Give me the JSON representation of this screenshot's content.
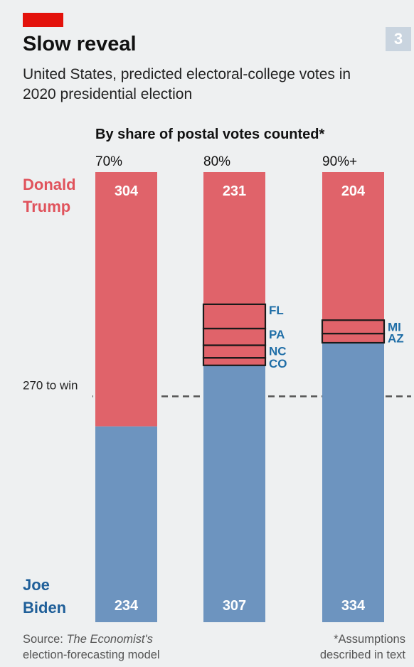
{
  "header": {
    "chart_number": "3",
    "title": "Slow reveal",
    "subtitle": "United States, predicted electoral-college votes in 2020 presidential election"
  },
  "footer": {
    "source_prefix": "Source: ",
    "source_italic": "The Economist's",
    "source_rest": "election-forecasting model",
    "note_line1": "*Assumptions",
    "note_line2": "described in text"
  },
  "colors": {
    "trump": "#e0636a",
    "biden": "#6d94bf",
    "trump_label": "#e0535c",
    "biden_label": "#1f5f99",
    "state_label": "#1f6ea7",
    "accent": "#e3120b"
  },
  "chart_data": {
    "type": "bar",
    "stacked": true,
    "title": "By share of postal votes counted*",
    "categories": [
      "70%",
      "80%",
      "90%+"
    ],
    "total": 538,
    "threshold": {
      "label": "270 to win",
      "value": 270
    },
    "series": [
      {
        "name": "Donald Trump",
        "values": [
          304,
          231,
          204
        ]
      },
      {
        "name": "Joe Biden",
        "values": [
          234,
          307,
          334
        ]
      }
    ],
    "series_labels": {
      "trump": [
        "Donald",
        "Trump"
      ],
      "biden": [
        "Joe",
        "Biden"
      ]
    },
    "swing_states": [
      {
        "category": "80%",
        "states": [
          "FL",
          "PA",
          "NC",
          "CO"
        ],
        "votes": [
          29,
          20,
          15,
          9
        ]
      },
      {
        "category": "90%+",
        "states": [
          "MI",
          "AZ"
        ],
        "votes": [
          16,
          11
        ]
      }
    ]
  }
}
